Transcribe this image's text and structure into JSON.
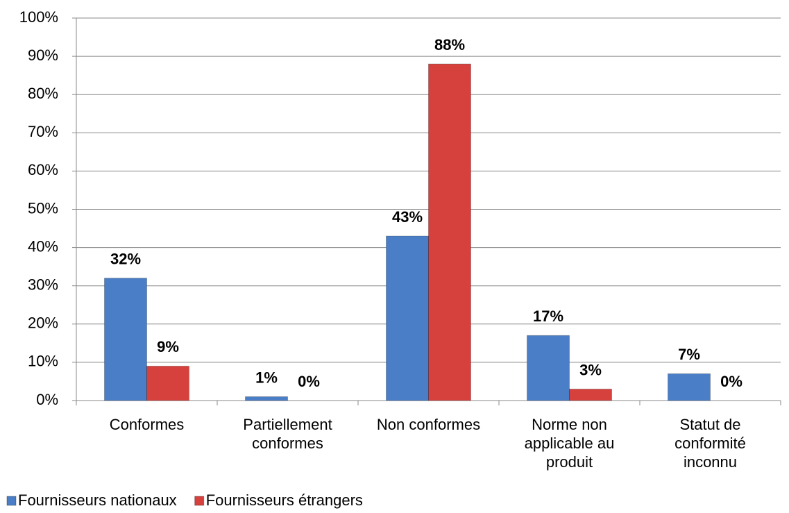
{
  "chart_data": {
    "type": "bar",
    "categories": [
      [
        "Conformes"
      ],
      [
        "Partiellement",
        "conformes"
      ],
      [
        "Non conformes"
      ],
      [
        "Norme non",
        "applicable au",
        "produit"
      ],
      [
        "Statut de",
        "conformité",
        "inconnu"
      ]
    ],
    "series": [
      {
        "name": "Fournisseurs nationaux",
        "color": "#4a7fc8",
        "values": [
          32,
          1,
          43,
          17,
          7
        ],
        "value_labels": [
          "32%",
          "1%",
          "43%",
          "17%",
          "7%"
        ]
      },
      {
        "name": "Fournisseurs étrangers",
        "color": "#d6403d",
        "values": [
          9,
          0,
          88,
          3,
          0
        ],
        "value_labels": [
          "9%",
          "0%",
          "88%",
          "3%",
          "0%"
        ]
      }
    ],
    "ylim": [
      0,
      100
    ],
    "yticks": [
      {
        "value": 0,
        "label": "0%"
      },
      {
        "value": 10,
        "label": "10%"
      },
      {
        "value": 20,
        "label": "20%"
      },
      {
        "value": 30,
        "label": "30%"
      },
      {
        "value": 40,
        "label": "40%"
      },
      {
        "value": 50,
        "label": "50%"
      },
      {
        "value": 60,
        "label": "60%"
      },
      {
        "value": 70,
        "label": "70%"
      },
      {
        "value": 80,
        "label": "80%"
      },
      {
        "value": 90,
        "label": "90%"
      },
      {
        "value": 100,
        "label": "100%"
      }
    ],
    "grid": true,
    "legend": "bottom"
  }
}
